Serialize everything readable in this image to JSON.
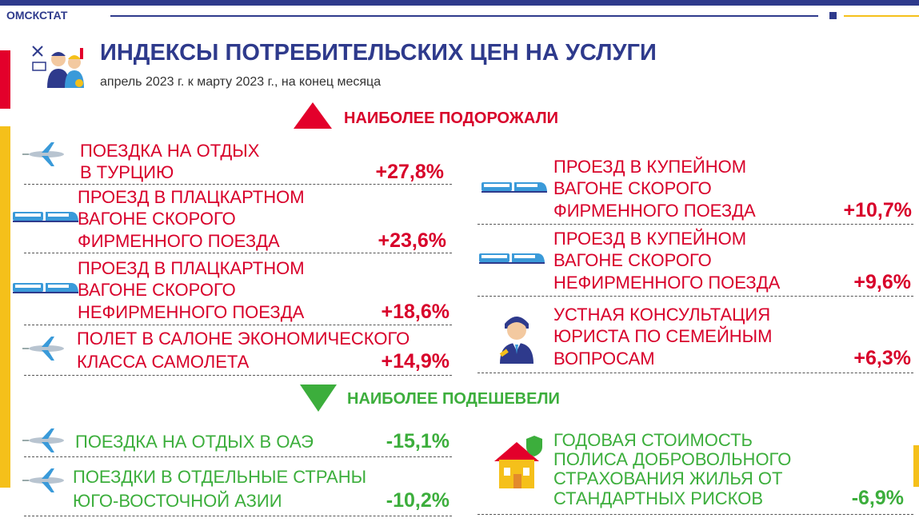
{
  "header": {
    "brand": "ОМСКСТАТ",
    "title": "ИНДЕКСЫ ПОТРЕБИТЕЛЬСКИХ ЦЕН НА УСЛУГИ",
    "subtitle": "апрель 2023 г. к марту 2023 г., на конец месяца"
  },
  "colors": {
    "navy": "#2e3a8c",
    "red": "#e3002b",
    "green": "#3cae3c",
    "yellow": "#f5c01a"
  },
  "increase": {
    "heading": "НАИБОЛЕЕ ПОДОРОЖАЛИ",
    "left": [
      {
        "icon": "airplane-icon",
        "lines": [
          "ПОЕЗДКА НА ОТДЫХ",
          "В ТУРЦИЮ"
        ],
        "value": "+27,8%"
      },
      {
        "icon": "train-icon",
        "lines": [
          "ПРОЕЗД В ПЛАЦКАРТНОМ",
          "ВАГОНЕ СКОРОГО",
          "ФИРМЕННОГО ПОЕЗДА"
        ],
        "value": "+23,6%"
      },
      {
        "icon": "train-icon",
        "lines": [
          "ПРОЕЗД В ПЛАЦКАРТНОМ",
          "ВАГОНЕ СКОРОГО",
          "НЕФИРМЕННОГО ПОЕЗДА"
        ],
        "value": "+18,6%"
      },
      {
        "icon": "airplane-icon",
        "lines": [
          "ПОЛЕТ В САЛОНЕ ЭКОНОМИЧЕСКОГО",
          "КЛАССА САМОЛЕТА"
        ],
        "value": "+14,9%"
      }
    ],
    "right": [
      {
        "icon": "train-icon",
        "lines": [
          "ПРОЕЗД В КУПЕЙНОМ",
          "ВАГОНЕ СКОРОГО",
          "ФИРМЕННОГО ПОЕЗДА"
        ],
        "value": "+10,7%"
      },
      {
        "icon": "train-icon",
        "lines": [
          "ПРОЕЗД В КУПЕЙНОМ",
          "ВАГОНЕ СКОРОГО",
          "НЕФИРМЕННОГО ПОЕЗДА"
        ],
        "value": "+9,6%"
      },
      {
        "icon": "lawyer-icon",
        "lines": [
          "УСТНАЯ КОНСУЛЬТАЦИЯ",
          "ЮРИСТА ПО СЕМЕЙНЫМ",
          "ВОПРОСАМ"
        ],
        "value": "+6,3%"
      }
    ]
  },
  "decrease": {
    "heading": "НАИБОЛЕЕ ПОДЕШЕВЕЛИ",
    "left": [
      {
        "icon": "airplane-icon",
        "lines": [
          "ПОЕЗДКА НА ОТДЫХ В ОАЭ"
        ],
        "value": "-15,1%"
      },
      {
        "icon": "airplane-icon",
        "lines": [
          "ПОЕЗДКИ В ОТДЕЛЬНЫЕ СТРАНЫ",
          "ЮГО-ВОСТОЧНОЙ АЗИИ"
        ],
        "value": "-10,2%"
      }
    ],
    "right": [
      {
        "icon": "house-insurance-icon",
        "lines": [
          "ГОДОВАЯ СТОИМОСТЬ",
          "ПОЛИСА ДОБРОВОЛЬНОГО",
          "СТРАХОВАНИЯ ЖИЛЬЯ ОТ",
          "СТАНДАРТНЫХ РИСКОВ"
        ],
        "value": "-6,9%"
      }
    ]
  }
}
